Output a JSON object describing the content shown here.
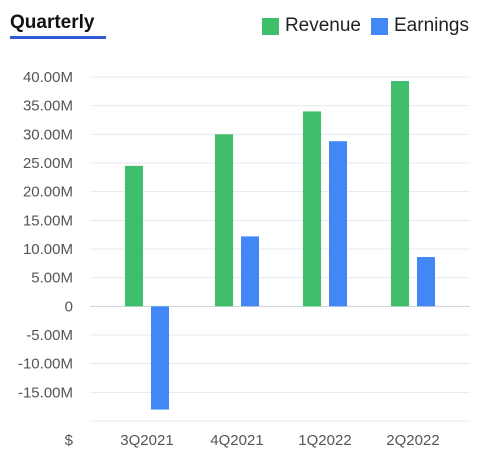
{
  "header": {
    "tab_label": "Quarterly"
  },
  "legend": [
    {
      "label": "Revenue",
      "color": "#3fbf6b"
    },
    {
      "label": "Earnings",
      "color": "#4287f5"
    }
  ],
  "chart_data": {
    "type": "bar",
    "categories": [
      "3Q2021",
      "4Q2021",
      "1Q2022",
      "2Q2022"
    ],
    "series": [
      {
        "name": "Revenue",
        "color": "#3fbf6b",
        "values": [
          24.5,
          30.0,
          34.0,
          39.3
        ]
      },
      {
        "name": "Earnings",
        "color": "#4287f5",
        "values": [
          -18.0,
          12.2,
          28.8,
          8.6
        ]
      }
    ],
    "ylim": [
      -20,
      40
    ],
    "y_ticks": [
      {
        "value": 40,
        "label": "40.00M"
      },
      {
        "value": 35,
        "label": "35.00M"
      },
      {
        "value": 30,
        "label": "30.00M"
      },
      {
        "value": 25,
        "label": "25.00M"
      },
      {
        "value": 20,
        "label": "20.00M"
      },
      {
        "value": 15,
        "label": "15.00M"
      },
      {
        "value": 10,
        "label": "10.00M"
      },
      {
        "value": 5,
        "label": "5.00M"
      },
      {
        "value": 0,
        "label": "0"
      },
      {
        "value": -5,
        "label": "-5.00M"
      },
      {
        "value": -10,
        "label": "-10.00M"
      },
      {
        "value": -15,
        "label": "-15.00M"
      }
    ],
    "x_axis_label": "$",
    "grid": true,
    "legend_position": "top-right"
  }
}
